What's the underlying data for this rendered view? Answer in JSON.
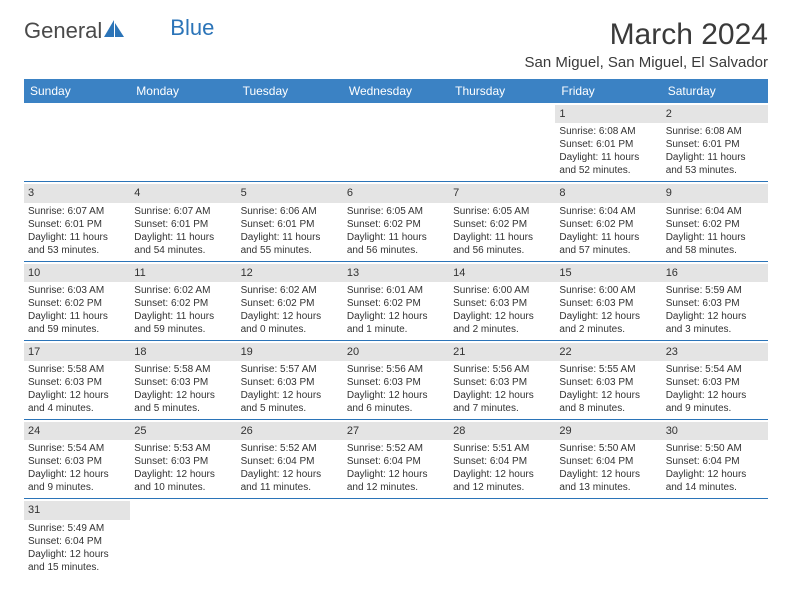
{
  "logo": {
    "part1": "General",
    "part2": "Blue"
  },
  "title": "March 2024",
  "location": "San Miguel, San Miguel, El Salvador",
  "header_bg": "#3b82c4",
  "header_fg": "#ffffff",
  "daybar_bg": "#e4e4e4",
  "border_color": "#2b74b8",
  "columns": [
    "Sunday",
    "Monday",
    "Tuesday",
    "Wednesday",
    "Thursday",
    "Friday",
    "Saturday"
  ],
  "weeks": [
    [
      {
        "n": "",
        "sr": "",
        "ss": "",
        "dl": ""
      },
      {
        "n": "",
        "sr": "",
        "ss": "",
        "dl": ""
      },
      {
        "n": "",
        "sr": "",
        "ss": "",
        "dl": ""
      },
      {
        "n": "",
        "sr": "",
        "ss": "",
        "dl": ""
      },
      {
        "n": "",
        "sr": "",
        "ss": "",
        "dl": ""
      },
      {
        "n": "1",
        "sr": "Sunrise: 6:08 AM",
        "ss": "Sunset: 6:01 PM",
        "dl": "Daylight: 11 hours and 52 minutes."
      },
      {
        "n": "2",
        "sr": "Sunrise: 6:08 AM",
        "ss": "Sunset: 6:01 PM",
        "dl": "Daylight: 11 hours and 53 minutes."
      }
    ],
    [
      {
        "n": "3",
        "sr": "Sunrise: 6:07 AM",
        "ss": "Sunset: 6:01 PM",
        "dl": "Daylight: 11 hours and 53 minutes."
      },
      {
        "n": "4",
        "sr": "Sunrise: 6:07 AM",
        "ss": "Sunset: 6:01 PM",
        "dl": "Daylight: 11 hours and 54 minutes."
      },
      {
        "n": "5",
        "sr": "Sunrise: 6:06 AM",
        "ss": "Sunset: 6:01 PM",
        "dl": "Daylight: 11 hours and 55 minutes."
      },
      {
        "n": "6",
        "sr": "Sunrise: 6:05 AM",
        "ss": "Sunset: 6:02 PM",
        "dl": "Daylight: 11 hours and 56 minutes."
      },
      {
        "n": "7",
        "sr": "Sunrise: 6:05 AM",
        "ss": "Sunset: 6:02 PM",
        "dl": "Daylight: 11 hours and 56 minutes."
      },
      {
        "n": "8",
        "sr": "Sunrise: 6:04 AM",
        "ss": "Sunset: 6:02 PM",
        "dl": "Daylight: 11 hours and 57 minutes."
      },
      {
        "n": "9",
        "sr": "Sunrise: 6:04 AM",
        "ss": "Sunset: 6:02 PM",
        "dl": "Daylight: 11 hours and 58 minutes."
      }
    ],
    [
      {
        "n": "10",
        "sr": "Sunrise: 6:03 AM",
        "ss": "Sunset: 6:02 PM",
        "dl": "Daylight: 11 hours and 59 minutes."
      },
      {
        "n": "11",
        "sr": "Sunrise: 6:02 AM",
        "ss": "Sunset: 6:02 PM",
        "dl": "Daylight: 11 hours and 59 minutes."
      },
      {
        "n": "12",
        "sr": "Sunrise: 6:02 AM",
        "ss": "Sunset: 6:02 PM",
        "dl": "Daylight: 12 hours and 0 minutes."
      },
      {
        "n": "13",
        "sr": "Sunrise: 6:01 AM",
        "ss": "Sunset: 6:02 PM",
        "dl": "Daylight: 12 hours and 1 minute."
      },
      {
        "n": "14",
        "sr": "Sunrise: 6:00 AM",
        "ss": "Sunset: 6:03 PM",
        "dl": "Daylight: 12 hours and 2 minutes."
      },
      {
        "n": "15",
        "sr": "Sunrise: 6:00 AM",
        "ss": "Sunset: 6:03 PM",
        "dl": "Daylight: 12 hours and 2 minutes."
      },
      {
        "n": "16",
        "sr": "Sunrise: 5:59 AM",
        "ss": "Sunset: 6:03 PM",
        "dl": "Daylight: 12 hours and 3 minutes."
      }
    ],
    [
      {
        "n": "17",
        "sr": "Sunrise: 5:58 AM",
        "ss": "Sunset: 6:03 PM",
        "dl": "Daylight: 12 hours and 4 minutes."
      },
      {
        "n": "18",
        "sr": "Sunrise: 5:58 AM",
        "ss": "Sunset: 6:03 PM",
        "dl": "Daylight: 12 hours and 5 minutes."
      },
      {
        "n": "19",
        "sr": "Sunrise: 5:57 AM",
        "ss": "Sunset: 6:03 PM",
        "dl": "Daylight: 12 hours and 5 minutes."
      },
      {
        "n": "20",
        "sr": "Sunrise: 5:56 AM",
        "ss": "Sunset: 6:03 PM",
        "dl": "Daylight: 12 hours and 6 minutes."
      },
      {
        "n": "21",
        "sr": "Sunrise: 5:56 AM",
        "ss": "Sunset: 6:03 PM",
        "dl": "Daylight: 12 hours and 7 minutes."
      },
      {
        "n": "22",
        "sr": "Sunrise: 5:55 AM",
        "ss": "Sunset: 6:03 PM",
        "dl": "Daylight: 12 hours and 8 minutes."
      },
      {
        "n": "23",
        "sr": "Sunrise: 5:54 AM",
        "ss": "Sunset: 6:03 PM",
        "dl": "Daylight: 12 hours and 9 minutes."
      }
    ],
    [
      {
        "n": "24",
        "sr": "Sunrise: 5:54 AM",
        "ss": "Sunset: 6:03 PM",
        "dl": "Daylight: 12 hours and 9 minutes."
      },
      {
        "n": "25",
        "sr": "Sunrise: 5:53 AM",
        "ss": "Sunset: 6:03 PM",
        "dl": "Daylight: 12 hours and 10 minutes."
      },
      {
        "n": "26",
        "sr": "Sunrise: 5:52 AM",
        "ss": "Sunset: 6:04 PM",
        "dl": "Daylight: 12 hours and 11 minutes."
      },
      {
        "n": "27",
        "sr": "Sunrise: 5:52 AM",
        "ss": "Sunset: 6:04 PM",
        "dl": "Daylight: 12 hours and 12 minutes."
      },
      {
        "n": "28",
        "sr": "Sunrise: 5:51 AM",
        "ss": "Sunset: 6:04 PM",
        "dl": "Daylight: 12 hours and 12 minutes."
      },
      {
        "n": "29",
        "sr": "Sunrise: 5:50 AM",
        "ss": "Sunset: 6:04 PM",
        "dl": "Daylight: 12 hours and 13 minutes."
      },
      {
        "n": "30",
        "sr": "Sunrise: 5:50 AM",
        "ss": "Sunset: 6:04 PM",
        "dl": "Daylight: 12 hours and 14 minutes."
      }
    ],
    [
      {
        "n": "31",
        "sr": "Sunrise: 5:49 AM",
        "ss": "Sunset: 6:04 PM",
        "dl": "Daylight: 12 hours and 15 minutes."
      },
      {
        "n": "",
        "sr": "",
        "ss": "",
        "dl": ""
      },
      {
        "n": "",
        "sr": "",
        "ss": "",
        "dl": ""
      },
      {
        "n": "",
        "sr": "",
        "ss": "",
        "dl": ""
      },
      {
        "n": "",
        "sr": "",
        "ss": "",
        "dl": ""
      },
      {
        "n": "",
        "sr": "",
        "ss": "",
        "dl": ""
      },
      {
        "n": "",
        "sr": "",
        "ss": "",
        "dl": ""
      }
    ]
  ]
}
